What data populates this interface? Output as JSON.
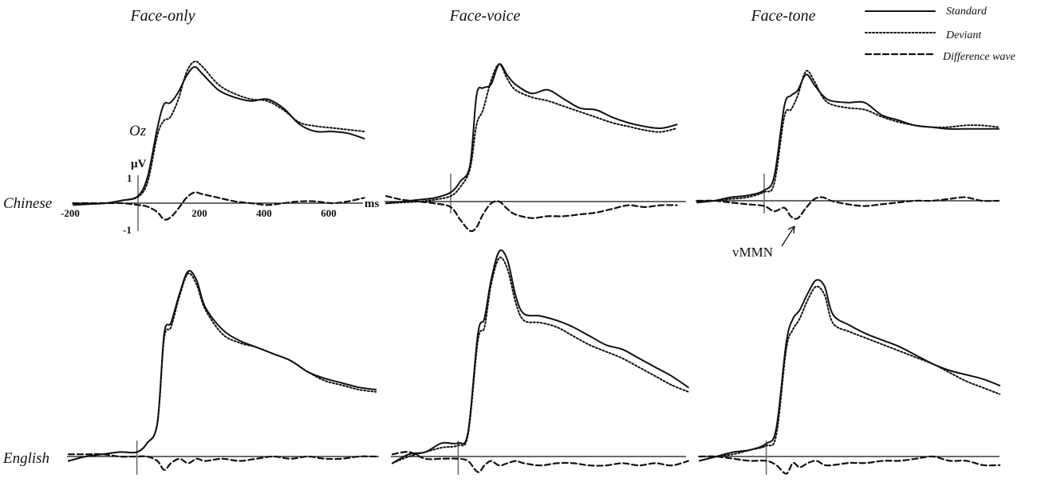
{
  "chart_data": {
    "type": "line",
    "x_unit": "ms",
    "y_unit": "µV",
    "xticks": [
      "-200",
      "200",
      "400",
      "600"
    ],
    "yticks": [
      "1",
      "-1"
    ],
    "channel_label": "Oz",
    "annotation": "vMMN",
    "column_titles": [
      "Face-only",
      "Face-voice",
      "Face-tone"
    ],
    "row_labels": [
      "Chinese",
      "English"
    ],
    "legend": {
      "position": "top-right",
      "items": [
        {
          "name": "Standard",
          "style": "solid"
        },
        {
          "name": "Deviant",
          "style": "dotted"
        },
        {
          "name": "Difference wave",
          "style": "dashed"
        }
      ]
    },
    "x": [
      -200,
      -150,
      -100,
      -50,
      0,
      30,
      60,
      80,
      100,
      125,
      150,
      175,
      200,
      250,
      300,
      350,
      400,
      450,
      500,
      550,
      600,
      650,
      700
    ],
    "panels": [
      {
        "row": "Chinese",
        "column": "Face-only",
        "series": [
          {
            "name": "Standard",
            "values": [
              -0.1,
              -0.05,
              0,
              0.15,
              0.4,
              1.5,
              4.2,
              5.5,
              5.6,
              6.2,
              7.1,
              7.6,
              7.2,
              6.3,
              5.9,
              5.7,
              5.8,
              5.3,
              4.4,
              4.0,
              4.0,
              3.9,
              3.6
            ]
          },
          {
            "name": "Deviant",
            "values": [
              -0.1,
              -0.05,
              0,
              0.15,
              0.35,
              1.2,
              3.8,
              4.6,
              4.8,
              5.8,
              7.3,
              7.9,
              7.6,
              6.6,
              6.1,
              5.8,
              5.7,
              5.2,
              4.5,
              4.3,
              4.2,
              4.1,
              4.0
            ]
          },
          {
            "name": "Difference wave",
            "values": [
              0,
              0,
              0,
              0,
              -0.1,
              -0.2,
              -0.5,
              -0.9,
              -0.8,
              -0.3,
              0.3,
              0.6,
              0.5,
              0.3,
              0.1,
              0,
              -0.1,
              0,
              0.1,
              0.1,
              0,
              0.1,
              0.3
            ]
          }
        ]
      },
      {
        "row": "Chinese",
        "column": "Face-voice",
        "series": [
          {
            "name": "Standard",
            "values": [
              -0.1,
              0,
              0.1,
              0.2,
              0.5,
              1.1,
              2.0,
              5.8,
              6.2,
              6.4,
              7.5,
              6.9,
              6.4,
              5.9,
              6.1,
              5.6,
              5.1,
              5.0,
              4.6,
              4.3,
              4.1,
              4.0,
              4.2
            ]
          },
          {
            "name": "Deviant",
            "values": [
              -0.1,
              -0.05,
              0,
              0.1,
              0.3,
              0.8,
              1.8,
              4.2,
              5.0,
              6.6,
              7.5,
              6.7,
              6.1,
              5.7,
              5.5,
              5.2,
              4.9,
              4.6,
              4.3,
              4.1,
              3.9,
              3.8,
              4.0
            ]
          },
          {
            "name": "Difference wave",
            "values": [
              0.3,
              0.1,
              0,
              -0.1,
              -0.3,
              -1.0,
              -1.6,
              -1.4,
              -0.7,
              -0.1,
              0,
              -0.4,
              -0.7,
              -0.9,
              -0.8,
              -0.8,
              -0.7,
              -0.6,
              -0.4,
              -0.2,
              -0.3,
              -0.2,
              -0.2
            ]
          }
        ]
      },
      {
        "row": "Chinese",
        "column": "Face-tone",
        "series": [
          {
            "name": "Standard",
            "values": [
              -0.1,
              0,
              0.2,
              0.3,
              0.6,
              1.4,
              5.4,
              6.0,
              6.3,
              7.2,
              6.6,
              6.0,
              5.7,
              5.6,
              5.6,
              4.9,
              4.6,
              4.3,
              4.2,
              4.1,
              4.1,
              4.1,
              4.1
            ]
          },
          {
            "name": "Deviant",
            "values": [
              -0.1,
              0,
              0.1,
              0.2,
              0.5,
              1.0,
              4.8,
              5.2,
              6.0,
              7.4,
              6.8,
              5.9,
              5.5,
              5.3,
              5.2,
              4.8,
              4.5,
              4.3,
              4.2,
              4.2,
              4.3,
              4.3,
              4.2
            ]
          },
          {
            "name": "Difference wave",
            "values": [
              0,
              0,
              -0.1,
              -0.2,
              -0.3,
              -0.6,
              -0.4,
              -0.9,
              -1.0,
              -0.4,
              0.1,
              0.2,
              0,
              -0.2,
              -0.3,
              -0.2,
              -0.1,
              0,
              0,
              0.1,
              0.2,
              0,
              0
            ]
          }
        ]
      },
      {
        "row": "English",
        "column": "Face-only",
        "series": [
          {
            "name": "Standard",
            "values": [
              -0.2,
              0,
              0.1,
              0.2,
              0.2,
              0.6,
              1.5,
              5.5,
              6.0,
              7.3,
              8.3,
              7.9,
              6.7,
              5.7,
              5.2,
              4.9,
              4.6,
              4.3,
              3.8,
              3.5,
              3.3,
              3.1,
              3.0
            ]
          },
          {
            "name": "Deviant",
            "values": [
              -0.2,
              0,
              0.1,
              0.2,
              0.2,
              0.6,
              1.5,
              5.3,
              5.8,
              7.2,
              8.2,
              7.7,
              6.6,
              5.5,
              5.1,
              4.9,
              4.6,
              4.3,
              3.8,
              3.4,
              3.2,
              3.0,
              2.9
            ]
          },
          {
            "name": "Difference wave",
            "values": [
              0.1,
              0.1,
              0.1,
              0,
              0,
              0,
              -0.2,
              -0.6,
              -0.3,
              -0.1,
              -0.3,
              -0.1,
              -0.2,
              -0.1,
              -0.2,
              -0.1,
              0,
              -0.1,
              0,
              -0.1,
              -0.1,
              0,
              0
            ]
          }
        ]
      },
      {
        "row": "English",
        "column": "Face-voice",
        "series": [
          {
            "name": "Standard",
            "values": [
              -0.3,
              0.1,
              0.2,
              0.6,
              0.6,
              1.1,
              5.5,
              6.2,
              7.9,
              9.2,
              8.8,
              7.2,
              6.4,
              6.3,
              6.1,
              5.8,
              5.4,
              5.0,
              4.8,
              4.4,
              4.0,
              3.6,
              3.1
            ]
          },
          {
            "name": "Deviant",
            "values": [
              -0.3,
              0,
              0.2,
              0.4,
              0.5,
              1.0,
              5.2,
              5.8,
              7.7,
              8.9,
              8.4,
              6.9,
              6.1,
              6.0,
              5.8,
              5.4,
              5.0,
              4.7,
              4.4,
              4.0,
              3.6,
              3.2,
              2.9
            ]
          },
          {
            "name": "Difference wave",
            "values": [
              0.1,
              0.2,
              -0.1,
              -0.1,
              -0.1,
              -0.2,
              -0.7,
              -0.4,
              -0.2,
              -0.4,
              -0.3,
              -0.2,
              -0.3,
              -0.4,
              -0.3,
              -0.3,
              -0.4,
              -0.4,
              -0.3,
              -0.4,
              -0.3,
              -0.4,
              -0.2
            ]
          }
        ]
      },
      {
        "row": "English",
        "column": "Face-tone",
        "series": [
          {
            "name": "Standard",
            "values": [
              -0.2,
              0,
              0.2,
              0.3,
              0.6,
              1.3,
              5.3,
              6.4,
              6.8,
              7.6,
              8.2,
              7.9,
              6.6,
              6.1,
              5.7,
              5.4,
              5.1,
              4.7,
              4.3,
              4.0,
              3.8,
              3.6,
              3.3
            ]
          },
          {
            "name": "Deviant",
            "values": [
              -0.2,
              0,
              0.1,
              0.3,
              0.5,
              1.0,
              5.0,
              5.9,
              6.4,
              7.3,
              7.9,
              7.5,
              6.2,
              5.8,
              5.5,
              5.2,
              4.9,
              4.6,
              4.3,
              3.9,
              3.5,
              3.2,
              2.9
            ]
          },
          {
            "name": "Difference wave",
            "values": [
              0,
              0,
              -0.1,
              -0.2,
              -0.2,
              -0.4,
              -0.8,
              -0.3,
              -0.5,
              -0.3,
              -0.2,
              -0.4,
              -0.4,
              -0.3,
              -0.3,
              -0.2,
              -0.2,
              -0.1,
              0,
              -0.2,
              -0.2,
              -0.4,
              -0.4
            ]
          }
        ]
      }
    ]
  }
}
